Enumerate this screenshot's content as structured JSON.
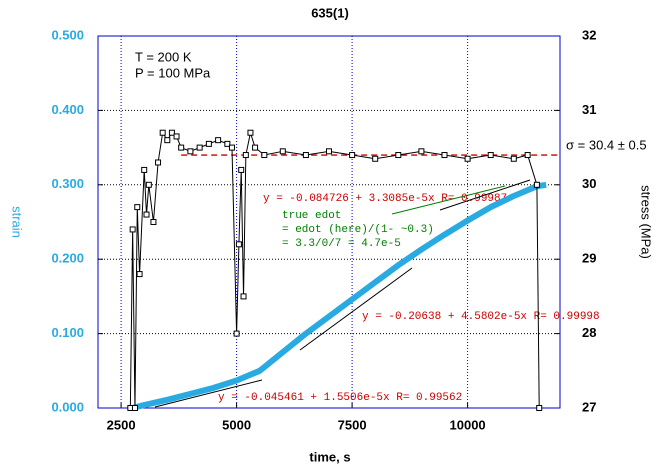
{
  "chart_data": {
    "type": "line",
    "title": "635(1)",
    "xlabel": "time, s",
    "ylabel": "strain",
    "y2label": "stress (MPa)",
    "xlim": [
      2000,
      12000
    ],
    "xticks": [
      2500,
      5000,
      7500,
      10000
    ],
    "ylim": [
      0,
      0.5
    ],
    "yticks": [
      {
        "value": 0,
        "label": "0.000"
      },
      {
        "value": 0.1,
        "label": "0.100"
      },
      {
        "value": 0.2,
        "label": "0.200"
      },
      {
        "value": 0.3,
        "label": "0.300"
      },
      {
        "value": 0.4,
        "label": "0.400"
      },
      {
        "value": 0.5,
        "label": "0.500"
      }
    ],
    "y2lim": [
      27,
      32
    ],
    "y2ticks": [
      27,
      28,
      29,
      30,
      31,
      32
    ],
    "grid": true,
    "series": [
      {
        "name": "strain",
        "color": "#29abe2",
        "x": [
          2750,
          3000,
          3500,
          4000,
          4500,
          5000,
          5500,
          6000,
          6500,
          7000,
          7500,
          8000,
          8500,
          9000,
          9500,
          10000,
          10500,
          11000,
          11500,
          11700
        ],
        "values": [
          0,
          0.004,
          0.011,
          0.019,
          0.027,
          0.037,
          0.05,
          0.075,
          0.1,
          0.123,
          0.146,
          0.169,
          0.192,
          0.213,
          0.233,
          0.252,
          0.27,
          0.285,
          0.298,
          0.3
        ]
      },
      {
        "name": "stress",
        "color": "#000000",
        "axis": "y2",
        "x": [
          2700,
          2750,
          2800,
          2850,
          2900,
          3000,
          3050,
          3100,
          3200,
          3300,
          3400,
          3500,
          3600,
          3700,
          3800,
          4000,
          4200,
          4400,
          4600,
          4800,
          4900,
          5000,
          5050,
          5100,
          5150,
          5200,
          5300,
          5400,
          5600,
          6000,
          6500,
          7000,
          7500,
          8000,
          8500,
          9000,
          9500,
          10000,
          10500,
          11000,
          11300,
          11500,
          11550
        ],
        "values": [
          27.0,
          29.4,
          27.0,
          29.7,
          28.8,
          30.2,
          29.6,
          30.0,
          29.5,
          30.3,
          30.7,
          30.6,
          30.7,
          30.65,
          30.5,
          30.45,
          30.5,
          30.55,
          30.6,
          30.55,
          30.5,
          28.0,
          29.2,
          30.2,
          28.5,
          30.4,
          30.7,
          30.5,
          30.4,
          30.45,
          30.4,
          30.45,
          30.4,
          30.35,
          30.4,
          30.45,
          30.4,
          30.35,
          30.4,
          30.35,
          30.4,
          30.0,
          27.0
        ]
      }
    ],
    "mean_line": {
      "value": 30.4,
      "label": "σ = 30.4 ± 0.5",
      "color": "#cc0000"
    },
    "annotations": {
      "conditions": [
        "T = 200 K",
        "P = 100 MPa"
      ],
      "fit1": "y = -0.045461 + 1.5506e-5x  R= 0.99562",
      "fit2": "y = -0.20638 + 4.5802e-5x  R= 0.99998",
      "fit3": "y = -0.084726 + 3.3085e-5x  R= 0.99987",
      "note": [
        "true edot",
        "= edot (here)/(1- ~0.3)",
        "= 3.3/0/7 = 4.7e-5"
      ]
    }
  }
}
